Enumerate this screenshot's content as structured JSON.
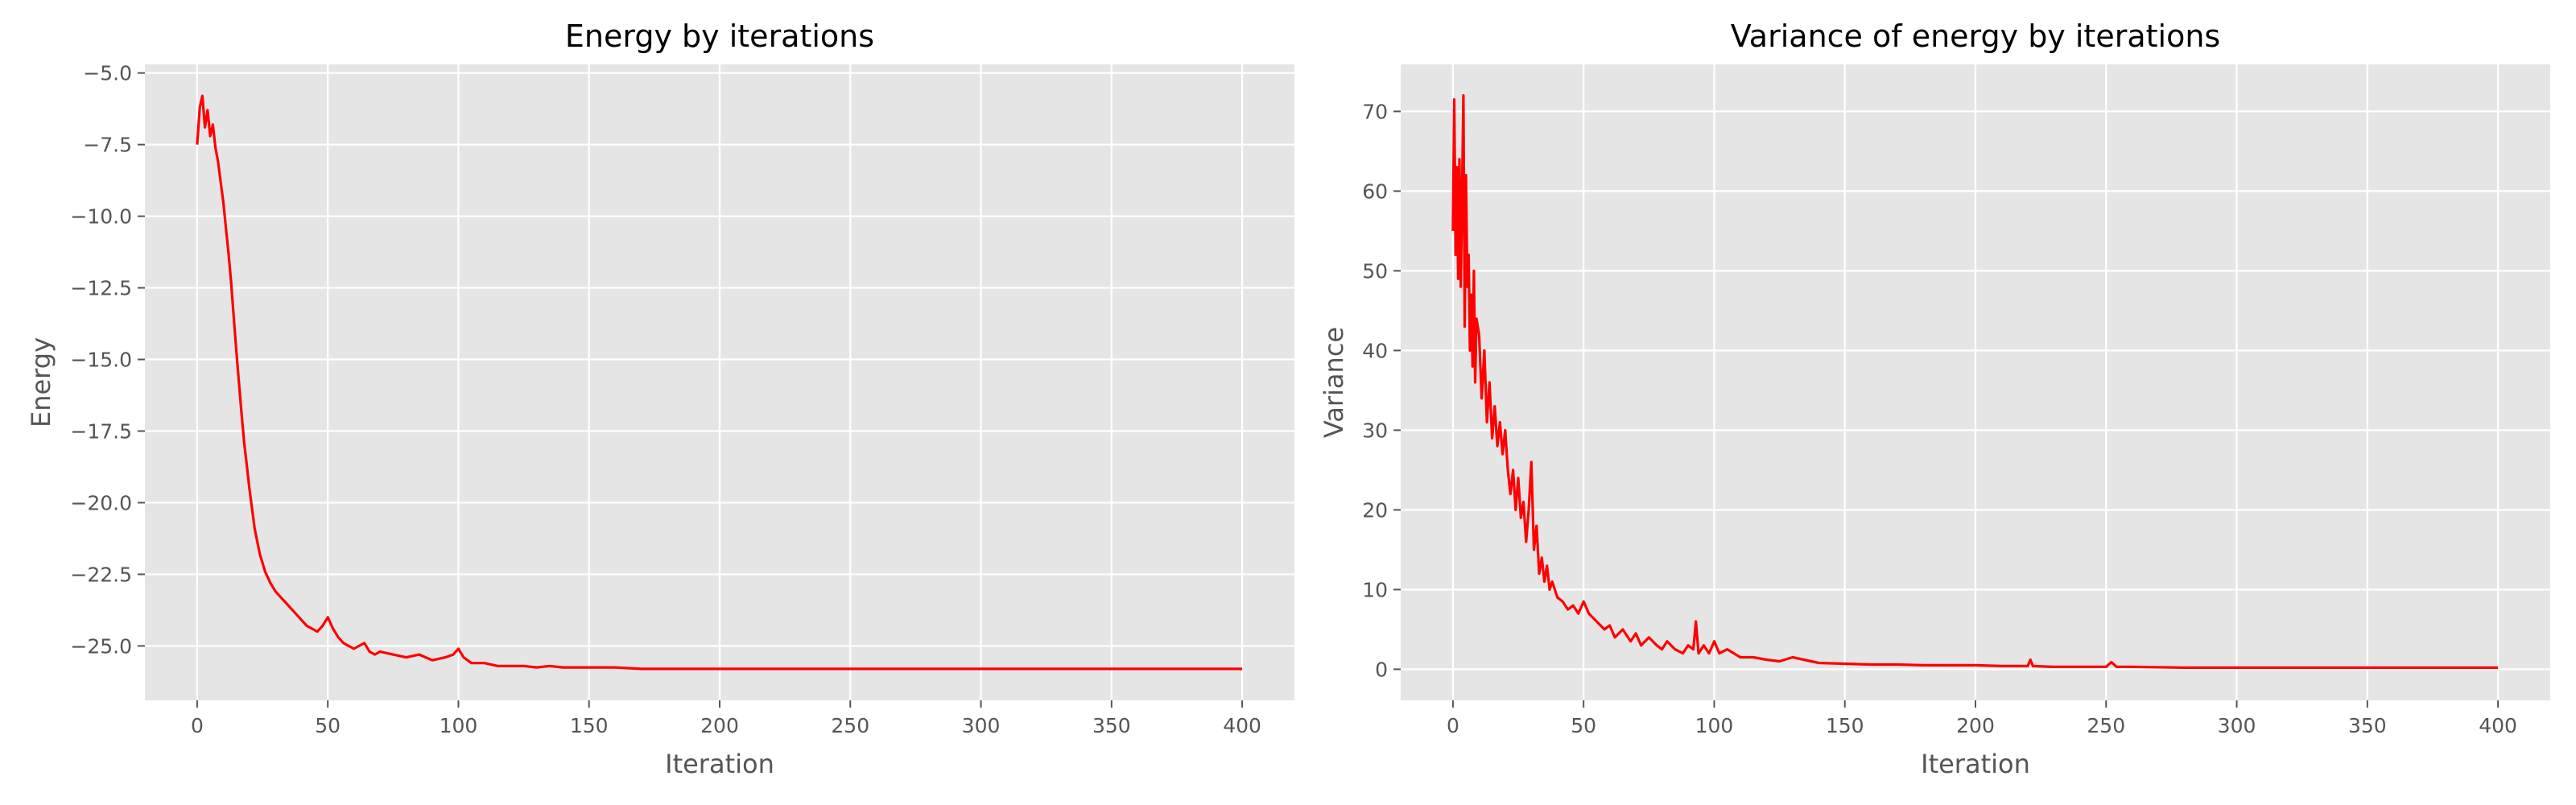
{
  "chart_data": [
    {
      "type": "line",
      "title": "Energy by iterations",
      "xlabel": "Iteration",
      "ylabel": "Energy",
      "xlim": [
        -20,
        420
      ],
      "ylim": [
        -26.9,
        -4.7
      ],
      "xticks": [
        0,
        50,
        100,
        150,
        200,
        250,
        300,
        350,
        400
      ],
      "yticks": [
        -25.0,
        -22.5,
        -20.0,
        -17.5,
        -15.0,
        -12.5,
        -10.0,
        -7.5,
        -5.0
      ],
      "xtick_labels": [
        "0",
        "50",
        "100",
        "150",
        "200",
        "250",
        "300",
        "350",
        "400"
      ],
      "ytick_labels": [
        "−25.0",
        "−22.5",
        "−20.0",
        "−17.5",
        "−15.0",
        "−12.5",
        "−10.0",
        "−7.5",
        "−5.0"
      ],
      "grid": true,
      "series": [
        {
          "color": "#ff0000",
          "x": [
            0,
            1,
            2,
            3,
            4,
            5,
            6,
            7,
            8,
            9,
            10,
            11,
            12,
            13,
            14,
            15,
            16,
            17,
            18,
            19,
            20,
            22,
            24,
            26,
            28,
            30,
            32,
            34,
            36,
            38,
            40,
            42,
            44,
            46,
            48,
            50,
            52,
            54,
            56,
            58,
            60,
            62,
            64,
            66,
            68,
            70,
            75,
            80,
            85,
            90,
            95,
            98,
            100,
            102,
            105,
            110,
            115,
            120,
            125,
            130,
            135,
            140,
            150,
            160,
            170,
            180,
            190,
            200,
            220,
            240,
            260,
            280,
            300,
            320,
            340,
            360,
            380,
            400
          ],
          "y": [
            -7.5,
            -6.2,
            -5.8,
            -6.9,
            -6.3,
            -7.2,
            -6.8,
            -7.6,
            -8.1,
            -8.8,
            -9.5,
            -10.4,
            -11.3,
            -12.3,
            -13.5,
            -14.7,
            -15.8,
            -16.9,
            -17.9,
            -18.7,
            -19.5,
            -20.9,
            -21.8,
            -22.4,
            -22.8,
            -23.1,
            -23.3,
            -23.5,
            -23.7,
            -23.9,
            -24.1,
            -24.3,
            -24.4,
            -24.5,
            -24.3,
            -24.0,
            -24.4,
            -24.7,
            -24.9,
            -25.0,
            -25.1,
            -25.0,
            -24.9,
            -25.2,
            -25.3,
            -25.2,
            -25.3,
            -25.4,
            -25.3,
            -25.5,
            -25.4,
            -25.3,
            -25.1,
            -25.4,
            -25.6,
            -25.6,
            -25.7,
            -25.7,
            -25.7,
            -25.75,
            -25.7,
            -25.75,
            -25.75,
            -25.75,
            -25.8,
            -25.8,
            -25.8,
            -25.8,
            -25.8,
            -25.8,
            -25.8,
            -25.8,
            -25.8,
            -25.8,
            -25.8,
            -25.8,
            -25.8,
            -25.8
          ]
        }
      ]
    },
    {
      "type": "line",
      "title": "Variance of energy by iterations",
      "xlabel": "Iteration",
      "ylabel": "Variance",
      "xlim": [
        -20,
        420
      ],
      "ylim": [
        -3.9,
        75.9
      ],
      "xticks": [
        0,
        50,
        100,
        150,
        200,
        250,
        300,
        350,
        400
      ],
      "yticks": [
        0,
        10,
        20,
        30,
        40,
        50,
        60,
        70
      ],
      "xtick_labels": [
        "0",
        "50",
        "100",
        "150",
        "200",
        "250",
        "300",
        "350",
        "400"
      ],
      "ytick_labels": [
        "0",
        "10",
        "20",
        "30",
        "40",
        "50",
        "60",
        "70"
      ],
      "grid": true,
      "series": [
        {
          "color": "#ff0000",
          "x": [
            0,
            0.5,
            1,
            1.5,
            2,
            2.5,
            3,
            3.5,
            4,
            4.5,
            5,
            5.5,
            6,
            6.5,
            7,
            7.5,
            8,
            8.5,
            9,
            10,
            11,
            12,
            13,
            14,
            15,
            16,
            17,
            18,
            19,
            20,
            21,
            22,
            23,
            24,
            25,
            26,
            27,
            28,
            29,
            30,
            31,
            32,
            33,
            34,
            35,
            36,
            37,
            38,
            40,
            42,
            44,
            46,
            48,
            50,
            52,
            55,
            58,
            60,
            62,
            65,
            68,
            70,
            72,
            75,
            78,
            80,
            82,
            85,
            88,
            90,
            92,
            93,
            94,
            96,
            98,
            100,
            102,
            105,
            110,
            115,
            120,
            125,
            130,
            140,
            150,
            160,
            170,
            180,
            190,
            200,
            210,
            220,
            221,
            222,
            230,
            240,
            250,
            252,
            254,
            260,
            280,
            300,
            320,
            340,
            360,
            380,
            400
          ],
          "y": [
            55,
            71.5,
            52,
            63,
            49,
            64,
            48,
            60,
            72,
            43,
            62,
            48,
            52,
            40,
            47,
            38,
            50,
            36,
            44,
            42,
            34,
            40,
            31,
            36,
            29,
            33,
            28,
            31,
            27,
            30,
            25,
            22,
            25,
            20,
            24,
            19,
            21,
            16,
            20,
            26,
            15,
            18,
            12,
            14,
            11,
            13,
            10,
            11,
            9,
            8.5,
            7.5,
            8,
            7,
            8.5,
            7,
            6,
            5,
            5.5,
            4,
            5,
            3.5,
            4.5,
            3,
            4,
            3,
            2.5,
            3.5,
            2.5,
            2,
            3,
            2.5,
            6,
            2,
            3,
            2,
            3.5,
            2,
            2.5,
            1.5,
            1.5,
            1.2,
            1,
            1.5,
            0.8,
            0.7,
            0.6,
            0.6,
            0.5,
            0.5,
            0.5,
            0.4,
            0.4,
            1.2,
            0.4,
            0.3,
            0.3,
            0.3,
            0.9,
            0.3,
            0.3,
            0.2,
            0.2,
            0.2,
            0.2,
            0.2,
            0.2,
            0.2
          ]
        }
      ]
    }
  ]
}
